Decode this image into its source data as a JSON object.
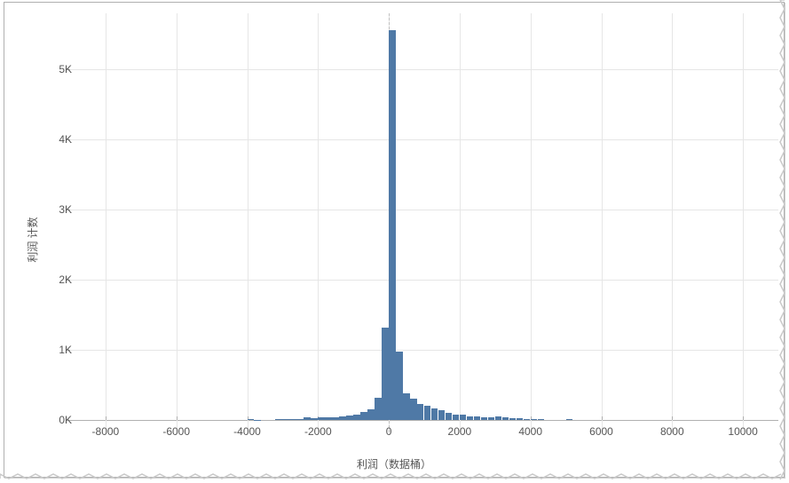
{
  "chart": {
    "type": "histogram",
    "ylabel": "利润 计数",
    "xlabel": "利润（数据桶）",
    "background_color": "#ffffff",
    "grid_color": "#e6e6e6",
    "axis_color": "#b0b0b0",
    "bar_color": "#4f79a6",
    "text_color": "#555555",
    "label_fontsize": 12,
    "tick_fontsize": 12,
    "xlim": [
      -9000,
      11000
    ],
    "ylim": [
      0,
      5800
    ],
    "xtick_step": 2000,
    "ytick_step": 1000,
    "xticks": [
      -8000,
      -6000,
      -4000,
      -2000,
      0,
      2000,
      4000,
      6000,
      8000,
      10000
    ],
    "yticks": [
      0,
      1000,
      2000,
      3000,
      4000,
      5000
    ],
    "ytick_labels": [
      "0K",
      "1K",
      "2K",
      "3K",
      "4K",
      "5K"
    ],
    "zero_reference_x": 0,
    "bin_width": 200,
    "bars": [
      {
        "x": -4000,
        "count": 5
      },
      {
        "x": -3800,
        "count": 4
      },
      {
        "x": -3200,
        "count": 6
      },
      {
        "x": -3000,
        "count": 8
      },
      {
        "x": -2800,
        "count": 10
      },
      {
        "x": -2600,
        "count": 15
      },
      {
        "x": -2400,
        "count": 35
      },
      {
        "x": -2200,
        "count": 25
      },
      {
        "x": -2000,
        "count": 30
      },
      {
        "x": -1800,
        "count": 40
      },
      {
        "x": -1600,
        "count": 40
      },
      {
        "x": -1400,
        "count": 55
      },
      {
        "x": -1200,
        "count": 60
      },
      {
        "x": -1000,
        "count": 80
      },
      {
        "x": -800,
        "count": 110
      },
      {
        "x": -600,
        "count": 150
      },
      {
        "x": -400,
        "count": 310
      },
      {
        "x": -200,
        "count": 1320
      },
      {
        "x": 0,
        "count": 5560
      },
      {
        "x": 200,
        "count": 980
      },
      {
        "x": 400,
        "count": 380
      },
      {
        "x": 600,
        "count": 300
      },
      {
        "x": 800,
        "count": 220
      },
      {
        "x": 1000,
        "count": 200
      },
      {
        "x": 1200,
        "count": 160
      },
      {
        "x": 1400,
        "count": 140
      },
      {
        "x": 1600,
        "count": 100
      },
      {
        "x": 1800,
        "count": 80
      },
      {
        "x": 2000,
        "count": 80
      },
      {
        "x": 2200,
        "count": 55
      },
      {
        "x": 2400,
        "count": 50
      },
      {
        "x": 2600,
        "count": 40
      },
      {
        "x": 2800,
        "count": 40
      },
      {
        "x": 3000,
        "count": 45
      },
      {
        "x": 3200,
        "count": 35
      },
      {
        "x": 3400,
        "count": 25
      },
      {
        "x": 3600,
        "count": 20
      },
      {
        "x": 3800,
        "count": 15
      },
      {
        "x": 4000,
        "count": 10
      },
      {
        "x": 4200,
        "count": 8
      },
      {
        "x": 5000,
        "count": 5
      }
    ]
  },
  "torn_edge": {
    "color": "#c9c9c9",
    "amplitude": 5,
    "period": 10
  }
}
